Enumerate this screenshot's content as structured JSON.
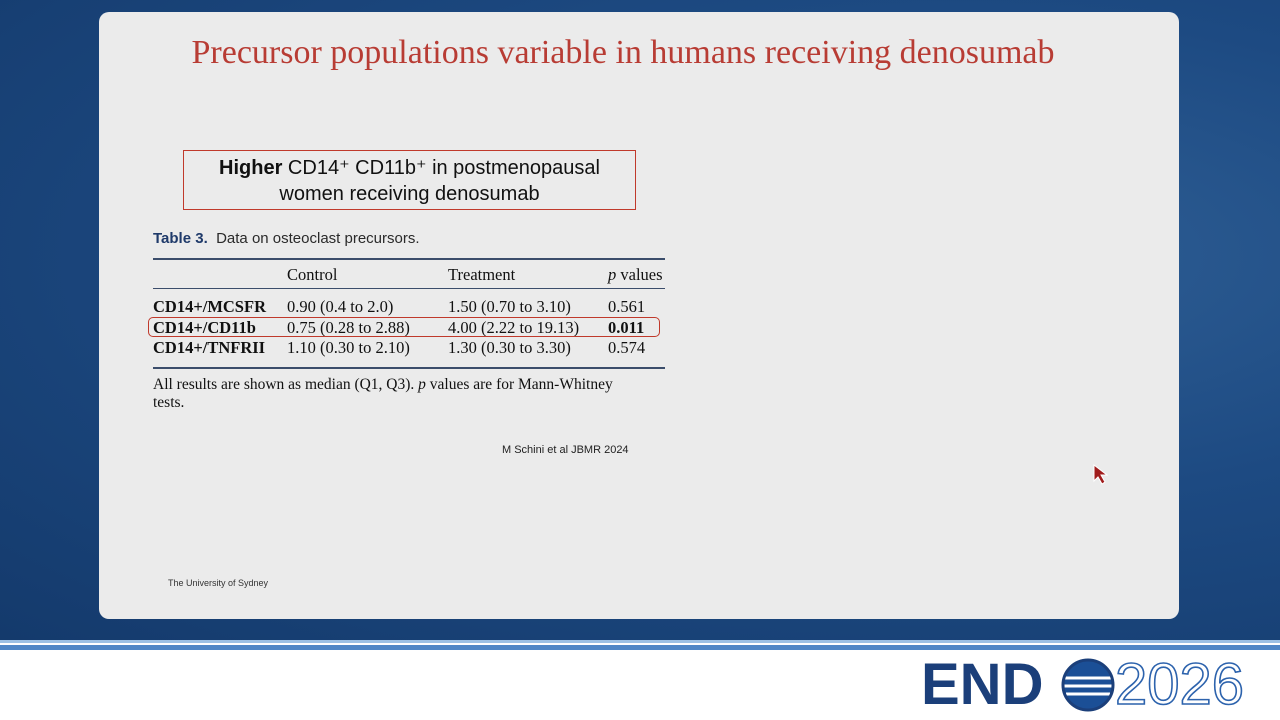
{
  "slide": {
    "title": "Precursor populations variable in humans receiving denosumab",
    "callout": {
      "bold": "Higher",
      "line1": " CD14⁺ CD11b⁺ in postmenopausal",
      "line2": "women receiving denosumab"
    },
    "table": {
      "caption_label": "Table 3.",
      "caption_text": "Data on osteoclast precursors.",
      "headers": [
        "Control",
        "Treatment",
        "p",
        " values"
      ],
      "rows": [
        [
          "CD14+/MCSFR",
          "0.90 (0.4 to 2.0)",
          "1.50 (0.70 to 3.10)",
          "0.561"
        ],
        [
          "CD14+/CD11b",
          "0.75 (0.28 to 2.88)",
          "4.00 (2.22 to 19.13)",
          "0.011"
        ],
        [
          "CD14+/TNFRII",
          "1.10 (0.30 to 2.10)",
          "1.30 (0.30 to 3.30)",
          "0.574"
        ]
      ],
      "footnote": [
        "All results are shown as median (Q1, Q3). ",
        "p",
        " values are for Mann-Whitney",
        "tests."
      ]
    },
    "citation": "M Schini et al JBMR 2024",
    "footer": "The University of Sydney"
  },
  "logo": {
    "left": "END",
    "right": "2026"
  }
}
